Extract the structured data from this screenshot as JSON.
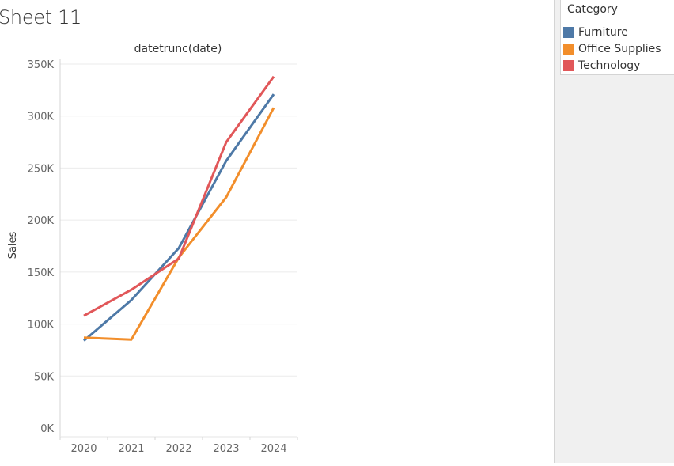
{
  "sheet": {
    "title": "Sheet 11"
  },
  "legend": {
    "title": "Category",
    "items": [
      {
        "label": "Furniture",
        "color": "#4e79a7"
      },
      {
        "label": "Office Supplies",
        "color": "#f28e2b"
      },
      {
        "label": "Technology",
        "color": "#e15759"
      }
    ]
  },
  "chart_data": {
    "type": "line",
    "title": "datetrunc(date)",
    "xlabel": "",
    "ylabel": "Sales",
    "categories": [
      "2020",
      "2021",
      "2022",
      "2023",
      "2024"
    ],
    "ylim": [
      0,
      350000
    ],
    "yticks": [
      0,
      50000,
      100000,
      150000,
      200000,
      250000,
      300000,
      350000
    ],
    "ytick_labels": [
      "0K",
      "50K",
      "100K",
      "150K",
      "200K",
      "250K",
      "300K",
      "350K"
    ],
    "grid": true,
    "legend_position": "top-right",
    "series": [
      {
        "name": "Furniture",
        "color": "#4e79a7",
        "values": [
          84000,
          123000,
          173000,
          257000,
          321000
        ]
      },
      {
        "name": "Office Supplies",
        "color": "#f28e2b",
        "values": [
          87000,
          85000,
          164000,
          222000,
          308000
        ]
      },
      {
        "name": "Technology",
        "color": "#e15759",
        "values": [
          108000,
          133000,
          163000,
          275000,
          338000
        ]
      }
    ]
  }
}
